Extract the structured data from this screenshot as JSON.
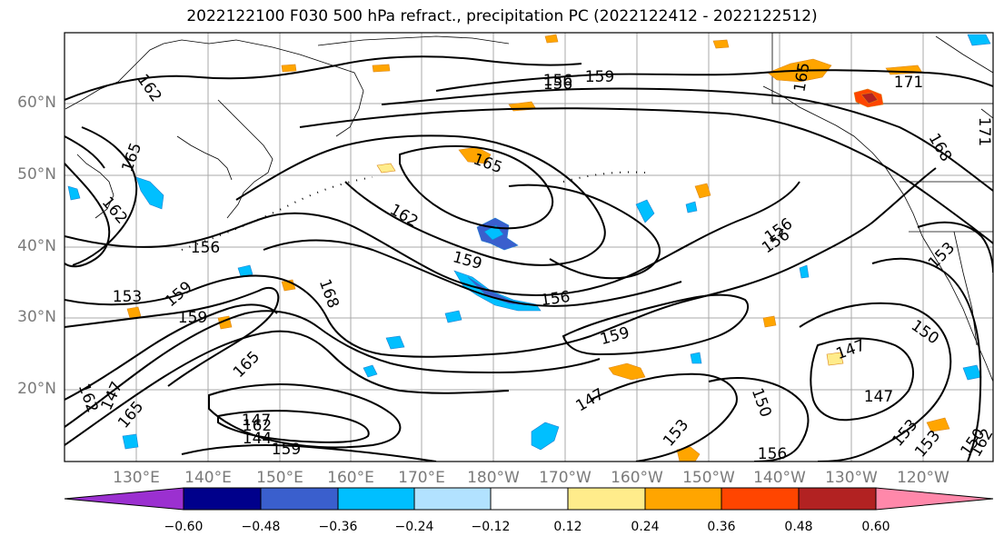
{
  "title": "2022122100 F030 500 hPa refract., precipitation PC (2022122412 - 2022122512)",
  "map": {
    "lat_labels": [
      "60°N",
      "50°N",
      "40°N",
      "30°N",
      "20°N"
    ],
    "lon_labels": [
      "130°E",
      "140°E",
      "150°E",
      "160°E",
      "170°E",
      "180°W",
      "170°W",
      "160°W",
      "150°W",
      "140°W",
      "130°W",
      "120°W"
    ],
    "contour_labels": [
      "162",
      "159",
      "156",
      "165",
      "171",
      "171",
      "168",
      "165",
      "162",
      "156",
      "153",
      "150",
      "147",
      "147",
      "150",
      "153",
      "150",
      "156",
      "147",
      "159",
      "156",
      "159",
      "153",
      "156",
      "153",
      "159",
      "162",
      "165",
      "168",
      "165",
      "162",
      "147",
      "144",
      "162",
      "159",
      "159",
      "165",
      "162",
      "147",
      "153",
      "156",
      "156"
    ]
  },
  "colorbar": {
    "colors": [
      "#9b30d0",
      "#00008b",
      "#3a5fcd",
      "#00bfff",
      "#b2e2ff",
      "#ffffff",
      "#ffec8b",
      "#ffa500",
      "#ff4500",
      "#b22222",
      "#ff88aa"
    ],
    "ticks": [
      "−0.60",
      "−0.48",
      "−0.36",
      "−0.24",
      "−0.12",
      "0.12",
      "0.24",
      "0.36",
      "0.48",
      "0.60"
    ]
  }
}
